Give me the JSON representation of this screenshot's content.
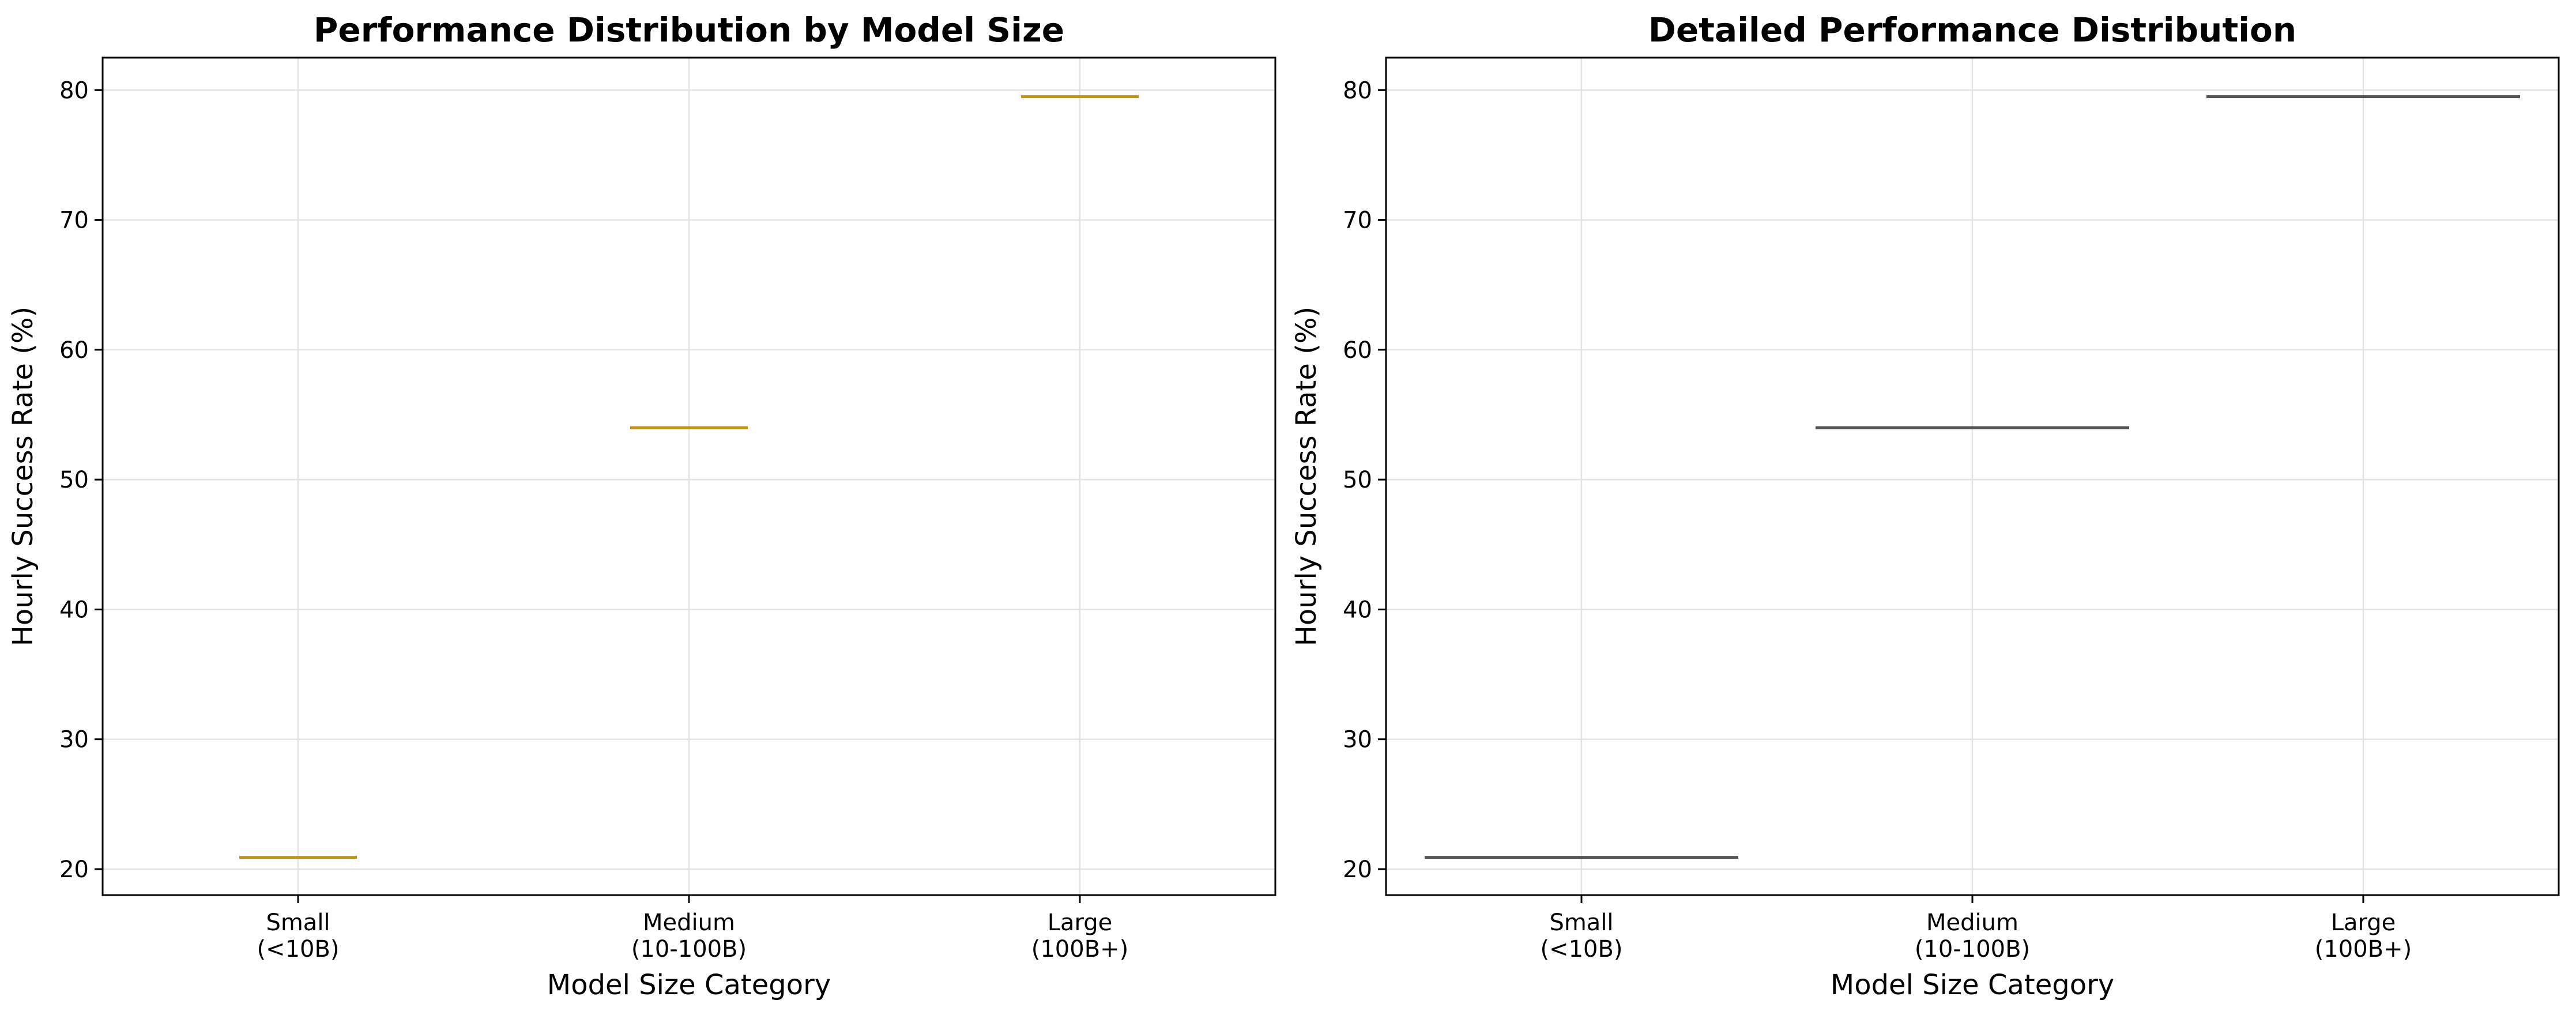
{
  "chart_data": [
    {
      "type": "box",
      "title": "Performance Distribution by Model Size",
      "xlabel": "Model Size Category",
      "ylabel": "Hourly Success Rate (%)",
      "categories": [
        "Small\n(<10B)",
        "Medium\n(10-100B)",
        "Large\n(100B+)"
      ],
      "category_lines": [
        [
          "Small",
          "(<10B)"
        ],
        [
          "Medium",
          "(10-100B)"
        ],
        [
          "Large",
          "(100B+)"
        ]
      ],
      "values": [
        20.9,
        54.0,
        79.5
      ],
      "ylim": [
        18,
        82.5
      ],
      "yticks": [
        20,
        30,
        40,
        50,
        60,
        70,
        80
      ],
      "grid": true,
      "median_color": "#c8960a"
    },
    {
      "type": "violin",
      "title": "Detailed Performance Distribution",
      "xlabel": "Model Size Category",
      "ylabel": "Hourly Success Rate (%)",
      "categories": [
        "Small\n(<10B)",
        "Medium\n(10-100B)",
        "Large\n(100B+)"
      ],
      "category_lines": [
        [
          "Small",
          "(<10B)"
        ],
        [
          "Medium",
          "(10-100B)"
        ],
        [
          "Large",
          "(100B+)"
        ]
      ],
      "values": [
        20.9,
        54.0,
        79.5
      ],
      "ylim": [
        18,
        82.5
      ],
      "yticks": [
        20,
        30,
        40,
        50,
        60,
        70,
        80
      ],
      "grid": true,
      "median_color": "#555555"
    }
  ]
}
